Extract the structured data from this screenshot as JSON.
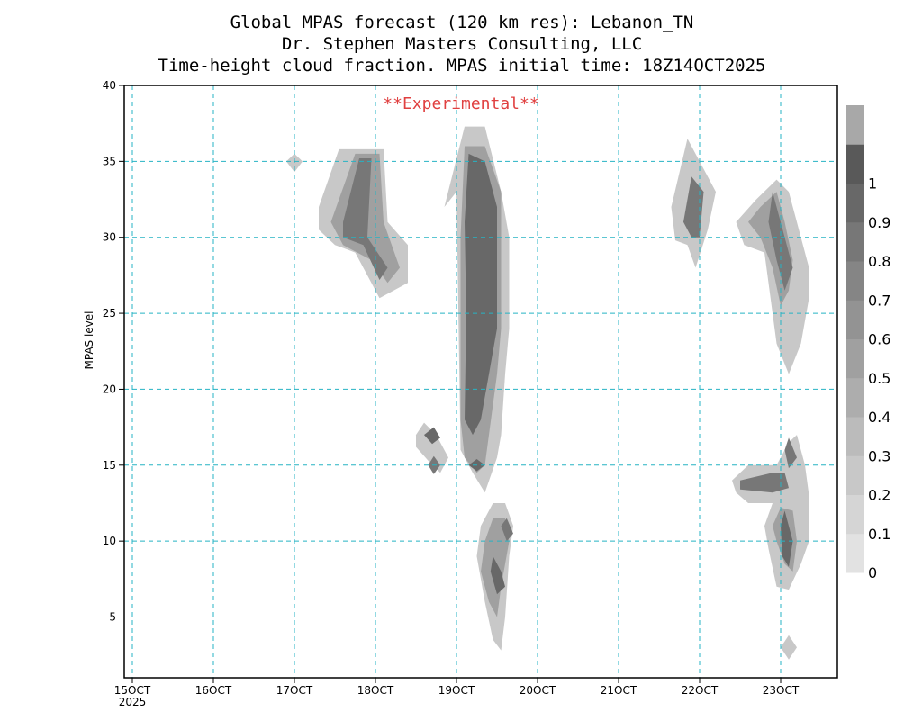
{
  "titles": {
    "line1": "Global MPAS forecast (120 km res): Lebanon_TN",
    "line2": "Dr. Stephen Masters Consulting, LLC",
    "line3": "Time-height cloud fraction.   MPAS initial time: 18Z14OCT2025"
  },
  "annotation": "**Experimental**",
  "chart_data": {
    "type": "heatmap",
    "title": "Time-height cloud fraction.",
    "xlabel": "",
    "ylabel": "MPAS level",
    "xlim": [
      14.9,
      23.7
    ],
    "ylim": [
      1,
      40
    ],
    "x_ticks": [
      {
        "value": 15,
        "label": "15OCT",
        "sublabel": "2025"
      },
      {
        "value": 16,
        "label": "16OCT"
      },
      {
        "value": 17,
        "label": "17OCT"
      },
      {
        "value": 18,
        "label": "18OCT"
      },
      {
        "value": 19,
        "label": "19OCT"
      },
      {
        "value": 20,
        "label": "20OCT"
      },
      {
        "value": 21,
        "label": "21OCT"
      },
      {
        "value": 22,
        "label": "22OCT"
      },
      {
        "value": 23,
        "label": "23OCT"
      }
    ],
    "y_ticks": [
      5,
      10,
      15,
      20,
      25,
      30,
      35,
      40
    ],
    "grid": true,
    "colorbar": {
      "levels": [
        0,
        0.1,
        0.2,
        0.3,
        0.4,
        0.5,
        0.6,
        0.7,
        0.8,
        0.9,
        1
      ],
      "colors": [
        "#e2e2e2",
        "#d5d5d5",
        "#c8c8c8",
        "#bbbbbb",
        "#adadad",
        "#a0a0a0",
        "#939393",
        "#858585",
        "#777777",
        "#686868",
        "#595959"
      ]
    },
    "cloud_regions": [
      {
        "x": [
          [
            17.0,
            35.5
          ],
          [
            17.1,
            35
          ],
          [
            17.0,
            34.3
          ],
          [
            16.9,
            35
          ]
        ],
        "value": 0.2
      },
      {
        "x": [
          [
            17.3,
            32
          ],
          [
            17.55,
            35.8
          ],
          [
            18.1,
            35.8
          ],
          [
            18.15,
            31
          ],
          [
            18.4,
            29.5
          ],
          [
            18.4,
            27
          ],
          [
            18.05,
            26
          ],
          [
            17.75,
            29
          ],
          [
            17.5,
            29.5
          ],
          [
            17.3,
            30.5
          ]
        ],
        "value": 0.2
      },
      {
        "x": [
          [
            17.45,
            31
          ],
          [
            17.75,
            35.5
          ],
          [
            18.05,
            35.5
          ],
          [
            18.1,
            31
          ],
          [
            18.3,
            28
          ],
          [
            18.15,
            27
          ],
          [
            17.95,
            28.5
          ],
          [
            17.6,
            29.5
          ]
        ],
        "value": 0.5
      },
      {
        "x": [
          [
            17.6,
            31
          ],
          [
            17.8,
            35.2
          ],
          [
            17.95,
            35.2
          ],
          [
            17.9,
            30
          ],
          [
            18.15,
            28
          ],
          [
            18.05,
            27.2
          ],
          [
            17.85,
            29.5
          ],
          [
            17.6,
            30
          ]
        ],
        "value": 0.85
      },
      {
        "x": [
          [
            18.5,
            17
          ],
          [
            18.6,
            17.8
          ],
          [
            18.75,
            17
          ],
          [
            18.9,
            15.5
          ],
          [
            18.8,
            14.5
          ],
          [
            18.65,
            15.3
          ],
          [
            18.5,
            16.2
          ]
        ],
        "value": 0.2
      },
      {
        "x": [
          [
            18.6,
            17
          ],
          [
            18.72,
            17.5
          ],
          [
            18.8,
            16.8
          ],
          [
            18.7,
            16.4
          ]
        ],
        "value": 0.9
      },
      {
        "x": [
          [
            18.65,
            15
          ],
          [
            18.72,
            15.6
          ],
          [
            18.8,
            15
          ],
          [
            18.72,
            14.4
          ]
        ],
        "value": 0.8
      },
      {
        "x": [
          [
            18.85,
            32
          ],
          [
            19.1,
            37.3
          ],
          [
            19.35,
            37.3
          ],
          [
            19.55,
            33
          ],
          [
            19.65,
            30
          ],
          [
            19.65,
            24
          ],
          [
            19.6,
            21
          ],
          [
            19.55,
            17
          ],
          [
            19.5,
            15.5
          ],
          [
            19.35,
            13.2
          ],
          [
            19.2,
            14.5
          ],
          [
            19.05,
            16
          ],
          [
            19.0,
            33
          ]
        ],
        "value": 0.2
      },
      {
        "x": [
          [
            19.05,
            30
          ],
          [
            19.1,
            36
          ],
          [
            19.35,
            36
          ],
          [
            19.55,
            33
          ],
          [
            19.55,
            24
          ],
          [
            19.5,
            21
          ],
          [
            19.4,
            17
          ],
          [
            19.35,
            15
          ],
          [
            19.25,
            14.5
          ],
          [
            19.1,
            15.5
          ],
          [
            19.05,
            18
          ],
          [
            19.05,
            25
          ]
        ],
        "value": 0.55
      },
      {
        "x": [
          [
            19.1,
            31
          ],
          [
            19.15,
            35.5
          ],
          [
            19.35,
            35
          ],
          [
            19.5,
            32
          ],
          [
            19.5,
            24
          ],
          [
            19.4,
            21
          ],
          [
            19.3,
            18
          ],
          [
            19.2,
            17
          ],
          [
            19.1,
            18
          ],
          [
            19.12,
            25
          ]
        ],
        "value": 0.9
      },
      {
        "x": [
          [
            19.15,
            15
          ],
          [
            19.25,
            15.4
          ],
          [
            19.35,
            15
          ],
          [
            19.25,
            14.6
          ]
        ],
        "value": 0.9
      },
      {
        "x": [
          [
            19.3,
            11
          ],
          [
            19.45,
            12.5
          ],
          [
            19.6,
            12.5
          ],
          [
            19.7,
            11
          ],
          [
            19.65,
            9
          ],
          [
            19.6,
            5
          ],
          [
            19.55,
            2.8
          ],
          [
            19.45,
            3.5
          ],
          [
            19.35,
            6
          ],
          [
            19.25,
            9
          ]
        ],
        "value": 0.2
      },
      {
        "x": [
          [
            19.35,
            10
          ],
          [
            19.45,
            11.5
          ],
          [
            19.6,
            11.5
          ],
          [
            19.65,
            10
          ],
          [
            19.55,
            7
          ],
          [
            19.5,
            5
          ],
          [
            19.4,
            6
          ],
          [
            19.3,
            8
          ]
        ],
        "value": 0.55
      },
      {
        "x": [
          [
            19.45,
            9
          ],
          [
            19.55,
            8
          ],
          [
            19.6,
            7
          ],
          [
            19.5,
            6.5
          ],
          [
            19.42,
            8
          ]
        ],
        "value": 0.9
      },
      {
        "x": [
          [
            19.55,
            11
          ],
          [
            19.62,
            11.5
          ],
          [
            19.7,
            10.5
          ],
          [
            19.62,
            10
          ]
        ],
        "value": 0.8
      },
      {
        "x": [
          [
            21.65,
            32
          ],
          [
            21.85,
            36.5
          ],
          [
            22.0,
            35
          ],
          [
            22.2,
            33
          ],
          [
            22.1,
            30.5
          ],
          [
            21.95,
            28
          ],
          [
            21.85,
            29.5
          ],
          [
            21.7,
            29.8
          ]
        ],
        "value": 0.2
      },
      {
        "x": [
          [
            21.8,
            31
          ],
          [
            21.9,
            34
          ],
          [
            22.05,
            33
          ],
          [
            22.0,
            30
          ],
          [
            21.9,
            30
          ]
        ],
        "value": 0.8
      },
      {
        "x": [
          [
            22.45,
            31
          ],
          [
            22.7,
            32.5
          ],
          [
            22.95,
            33.8
          ],
          [
            23.1,
            33
          ],
          [
            23.2,
            31
          ],
          [
            23.35,
            28
          ],
          [
            23.35,
            26
          ],
          [
            23.25,
            23
          ],
          [
            23.1,
            21
          ],
          [
            22.95,
            23
          ],
          [
            22.8,
            29
          ],
          [
            22.55,
            29.5
          ]
        ],
        "value": 0.2
      },
      {
        "x": [
          [
            22.6,
            31
          ],
          [
            22.75,
            32
          ],
          [
            22.95,
            33
          ],
          [
            23.05,
            31
          ],
          [
            23.15,
            28.5
          ],
          [
            23.1,
            26.5
          ],
          [
            23.0,
            25.5
          ],
          [
            22.9,
            28
          ],
          [
            22.75,
            30
          ]
        ],
        "value": 0.5
      },
      {
        "x": [
          [
            22.85,
            31
          ],
          [
            22.9,
            33
          ],
          [
            23.05,
            30
          ],
          [
            23.15,
            28
          ],
          [
            23.05,
            26.5
          ],
          [
            22.95,
            28.5
          ]
        ],
        "value": 0.85
      },
      {
        "x": [
          [
            22.4,
            14
          ],
          [
            22.6,
            15
          ],
          [
            22.95,
            15
          ],
          [
            23.1,
            16.5
          ],
          [
            23.2,
            17
          ],
          [
            23.3,
            15
          ],
          [
            23.35,
            13
          ],
          [
            23.35,
            10
          ],
          [
            23.25,
            8.5
          ],
          [
            23.1,
            6.8
          ],
          [
            22.95,
            7
          ],
          [
            22.85,
            9.5
          ],
          [
            22.8,
            11
          ],
          [
            22.9,
            12.5
          ],
          [
            22.6,
            12.5
          ],
          [
            22.45,
            13.2
          ]
        ],
        "value": 0.2
      },
      {
        "x": [
          [
            22.5,
            14
          ],
          [
            22.9,
            14.5
          ],
          [
            23.05,
            14.5
          ],
          [
            23.1,
            13.5
          ],
          [
            22.9,
            13.2
          ],
          [
            22.5,
            13.4
          ]
        ],
        "value": 0.85
      },
      {
        "x": [
          [
            23.05,
            16
          ],
          [
            23.1,
            16.8
          ],
          [
            23.2,
            15.5
          ],
          [
            23.1,
            14.8
          ]
        ],
        "value": 0.8
      },
      {
        "x": [
          [
            22.9,
            11
          ],
          [
            23.0,
            12.2
          ],
          [
            23.15,
            12
          ],
          [
            23.2,
            10
          ],
          [
            23.15,
            8
          ],
          [
            23.05,
            8.5
          ],
          [
            22.95,
            10
          ]
        ],
        "value": 0.55
      },
      {
        "x": [
          [
            23.0,
            11
          ],
          [
            23.05,
            12
          ],
          [
            23.15,
            10
          ],
          [
            23.1,
            8.3
          ],
          [
            23.02,
            9
          ]
        ],
        "value": 0.9
      },
      {
        "x": [
          [
            23.0,
            3
          ],
          [
            23.1,
            3.8
          ],
          [
            23.2,
            3
          ],
          [
            23.1,
            2.2
          ]
        ],
        "value": 0.2
      }
    ]
  }
}
